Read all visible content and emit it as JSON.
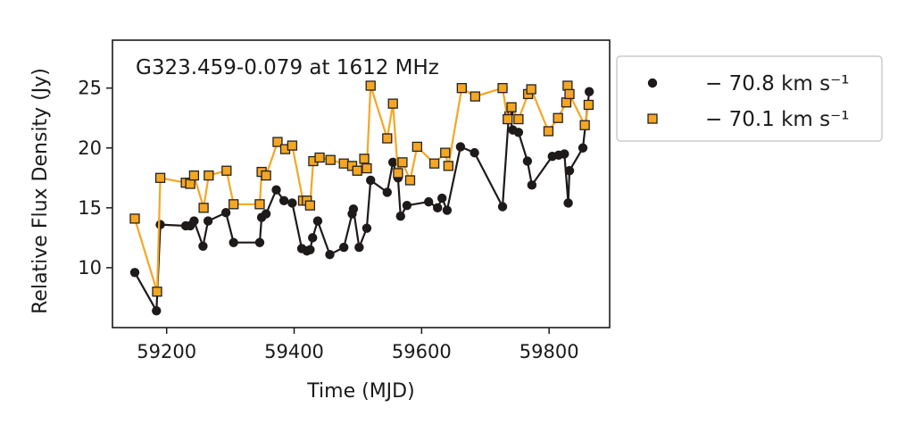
{
  "chart_data": {
    "type": "line",
    "annotation": "G323.459-0.079 at 1612 MHz",
    "xlabel": "Time (MJD)",
    "ylabel": "Relative Flux Density (Jy)",
    "xlim": [
      59115,
      59895
    ],
    "ylim": [
      5,
      29
    ],
    "xticks": [
      59200,
      59400,
      59600,
      59800
    ],
    "yticks": [
      10,
      15,
      20,
      25
    ],
    "grid": false,
    "legend_position": "outside-right",
    "series": [
      {
        "name": "− 70.8 km s⁻¹",
        "color": "#1f1a1a",
        "marker": "circle",
        "x": [
          59150,
          59184,
          59190,
          59230,
          59237,
          59243,
          59257,
          59265,
          59293,
          59305,
          59346,
          59349,
          59356,
          59372,
          59384,
          59397,
          59412,
          59420,
          59425,
          59429,
          59437,
          59456,
          59478,
          59491,
          59493,
          59502,
          59514,
          59520,
          59546,
          59555,
          59563,
          59567,
          59577,
          59611,
          59625,
          59632,
          59640,
          59661,
          59683,
          59727,
          59737,
          59743,
          59752,
          59766,
          59773,
          59805,
          59815,
          59824,
          59830,
          59832,
          59853,
          59863
        ],
        "y": [
          9.6,
          6.4,
          13.6,
          13.5,
          13.5,
          13.9,
          11.8,
          13.9,
          14.6,
          12.1,
          12.1,
          14.2,
          14.5,
          16.5,
          15.6,
          15.4,
          11.6,
          11.4,
          11.5,
          12.5,
          13.9,
          11.1,
          11.7,
          14.5,
          14.9,
          11.7,
          13.3,
          17.3,
          16.3,
          18.8,
          17.5,
          14.3,
          15.2,
          15.5,
          15.0,
          15.8,
          14.8,
          20.1,
          19.6,
          15.1,
          22.9,
          21.5,
          21.3,
          18.9,
          16.9,
          19.3,
          19.4,
          19.5,
          15.4,
          18.1,
          20.0,
          24.7
        ]
      },
      {
        "name": "− 70.1 km s⁻¹",
        "color": "#f5a623",
        "marker": "square",
        "x": [
          59150,
          59185,
          59190,
          59230,
          59237,
          59243,
          59258,
          59266,
          59294,
          59305,
          59346,
          59349,
          59356,
          59374,
          59386,
          59397,
          59414,
          59420,
          59425,
          59430,
          59440,
          59457,
          59478,
          59491,
          59499,
          59510,
          59514,
          59520,
          59546,
          59555,
          59563,
          59570,
          59582,
          59593,
          59620,
          59637,
          59642,
          59663,
          59684,
          59727,
          59735,
          59741,
          59752,
          59767,
          59772,
          59799,
          59814,
          59827,
          59829,
          59832,
          59856,
          59862
        ],
        "y": [
          14.1,
          8.0,
          17.5,
          17.1,
          17.0,
          17.7,
          15.0,
          17.7,
          18.1,
          15.3,
          15.3,
          18.0,
          17.7,
          20.5,
          19.9,
          20.2,
          15.6,
          15.6,
          15.2,
          18.9,
          19.2,
          19.0,
          18.7,
          18.5,
          18.1,
          19.1,
          18.3,
          25.2,
          20.8,
          23.7,
          17.9,
          18.8,
          17.3,
          20.1,
          18.7,
          19.6,
          18.5,
          25.0,
          24.3,
          25.0,
          22.4,
          23.4,
          22.4,
          24.5,
          24.9,
          21.4,
          22.5,
          23.8,
          25.2,
          24.5,
          21.9,
          23.6
        ]
      }
    ]
  }
}
